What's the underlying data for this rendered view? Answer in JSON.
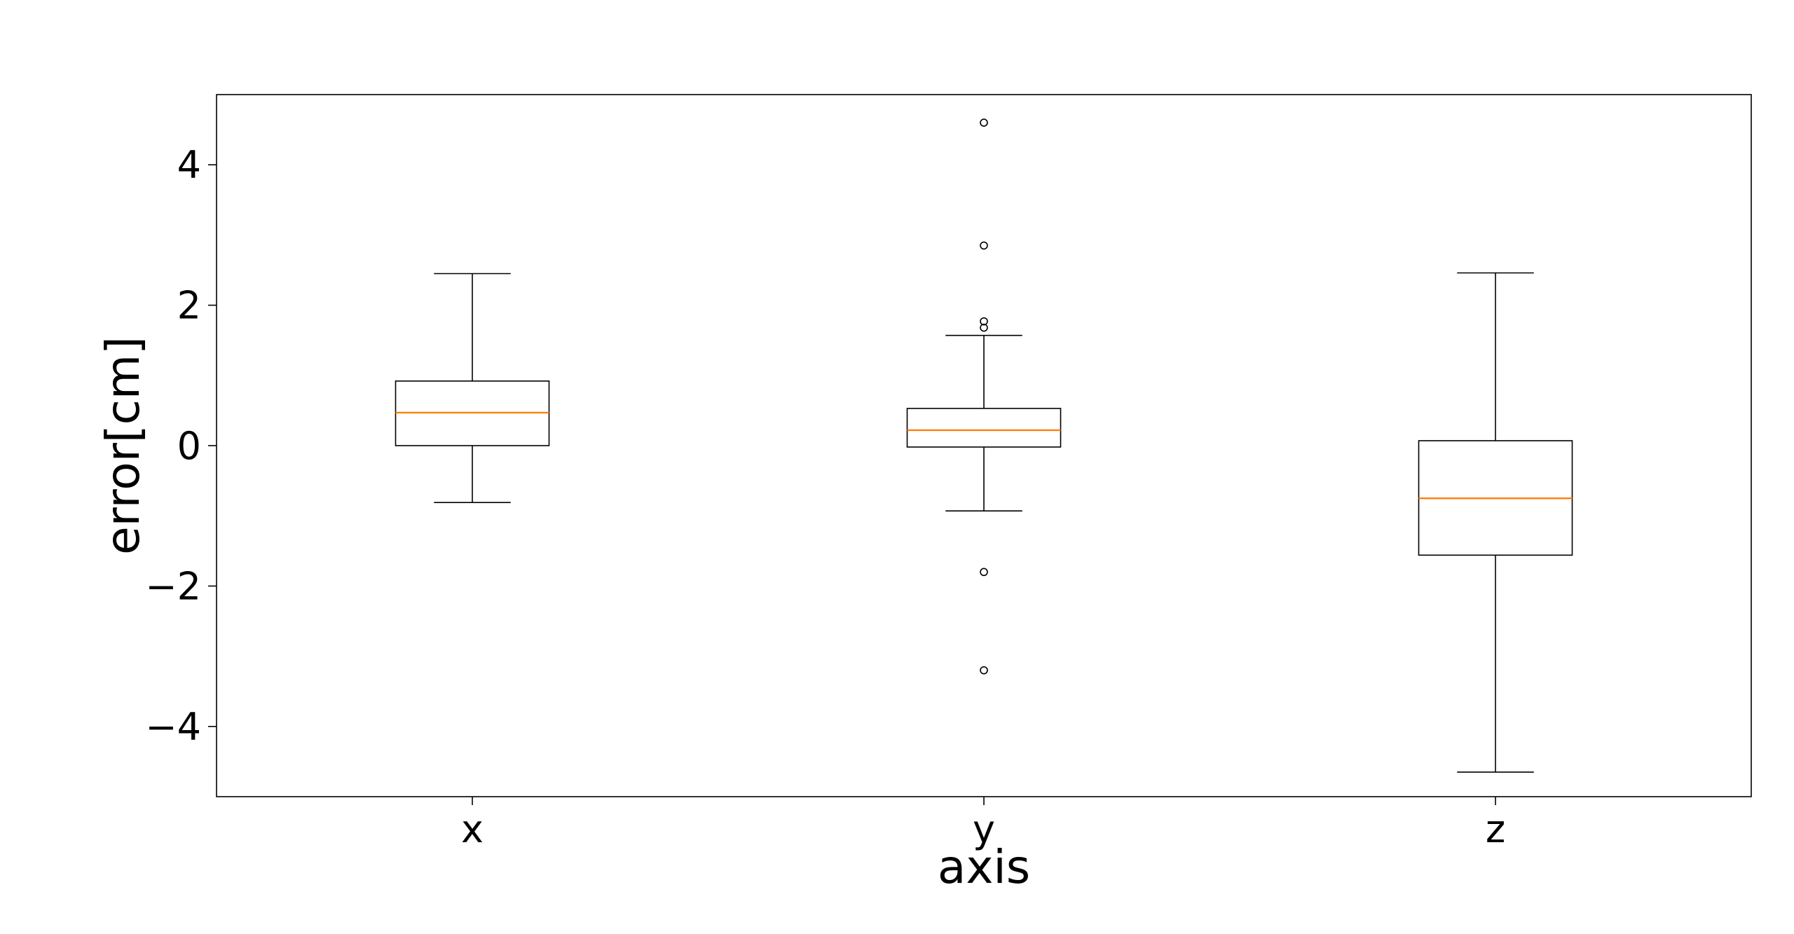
{
  "chart_data": {
    "type": "box",
    "title": "",
    "xlabel": "axis",
    "ylabel": "error[cm]",
    "categories": [
      "x",
      "y",
      "z"
    ],
    "ylim": [
      -5,
      5
    ],
    "yticks": [
      -4,
      -2,
      0,
      2,
      4
    ],
    "ytick_labels": [
      "−4",
      "−2",
      "0",
      "2",
      "4"
    ],
    "grid": false,
    "colors": {
      "median": "#ff7f0e",
      "box": "#000000",
      "background": "#ffffff"
    },
    "boxes": [
      {
        "category": "x",
        "whisker_low": -0.81,
        "q1": 0.0,
        "median": 0.47,
        "q3": 0.92,
        "whisker_high": 2.45,
        "outliers": []
      },
      {
        "category": "y",
        "whisker_low": -0.93,
        "q1": -0.02,
        "median": 0.22,
        "q3": 0.53,
        "whisker_high": 1.57,
        "outliers": [
          4.6,
          2.85,
          1.77,
          1.68,
          -1.8,
          -3.2
        ]
      },
      {
        "category": "z",
        "whisker_low": -4.65,
        "q1": -1.56,
        "median": -0.75,
        "q3": 0.07,
        "whisker_high": 2.46,
        "outliers": []
      }
    ]
  }
}
